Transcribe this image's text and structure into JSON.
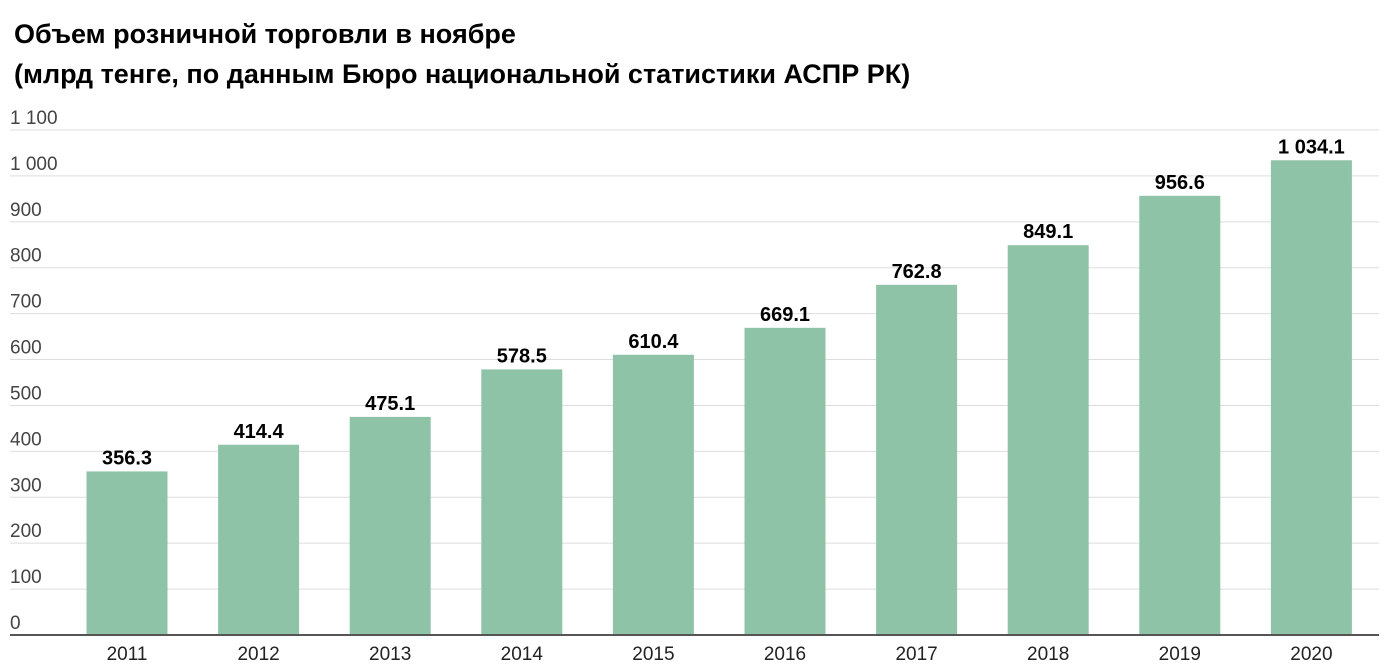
{
  "chart_data": {
    "type": "bar",
    "title": "Объем розничной торговли в ноябре",
    "subtitle": "(млрд тенге, по данным Бюро национальной статистики АСПР РК)",
    "xlabel": "",
    "ylabel": "",
    "categories": [
      "2011",
      "2012",
      "2013",
      "2014",
      "2015",
      "2016",
      "2017",
      "2018",
      "2019",
      "2020"
    ],
    "values": [
      356.3,
      414.4,
      475.1,
      578.5,
      610.4,
      669.1,
      762.8,
      849.1,
      956.6,
      1034.1
    ],
    "data_labels": [
      "356.3",
      "414.4",
      "475.1",
      "578.5",
      "610.4",
      "669.1",
      "762.8",
      "849.1",
      "956.6",
      "1 034.1"
    ],
    "ylim": [
      0,
      1100
    ],
    "yticks": [
      0,
      100,
      200,
      300,
      400,
      500,
      600,
      700,
      800,
      900,
      1000,
      1100
    ],
    "ytick_labels": [
      "0",
      "100",
      "200",
      "300",
      "400",
      "500",
      "600",
      "700",
      "800",
      "900",
      "1 000",
      "1 100"
    ],
    "grid": true,
    "bar_color": "#8fc3a7",
    "gridline_color": "#dddddd",
    "baseline_color": "#555555"
  }
}
